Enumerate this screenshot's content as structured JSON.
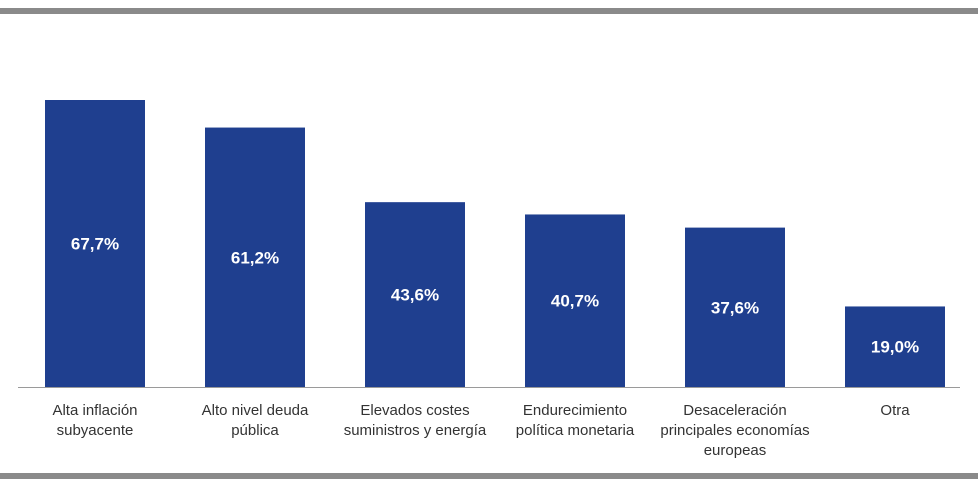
{
  "colors": {
    "bar": "#1f3f8f",
    "rule": "#8a8a8a",
    "axis": "#9a9a9a",
    "label_text": "#ffffff",
    "category_text": "#333333"
  },
  "chart_data": {
    "type": "bar",
    "title": "",
    "xlabel": "",
    "ylabel": "",
    "ylim": [
      0,
      70
    ],
    "grid": false,
    "legend": "none",
    "categories": [
      [
        "Alta inflación",
        "subyacente"
      ],
      [
        "Alto nivel deuda",
        "pública"
      ],
      [
        "Elevados costes",
        "suministros y energía"
      ],
      [
        "Endurecimiento",
        "política monetaria"
      ],
      [
        "Desaceleración",
        "principales economías",
        "europeas"
      ],
      [
        "Otra"
      ]
    ],
    "values": [
      67.7,
      61.2,
      43.6,
      40.7,
      37.6,
      19.0
    ],
    "data_labels": [
      "67,7%",
      "61,2%",
      "43,6%",
      "40,7%",
      "37,6%",
      "19,0%"
    ]
  }
}
